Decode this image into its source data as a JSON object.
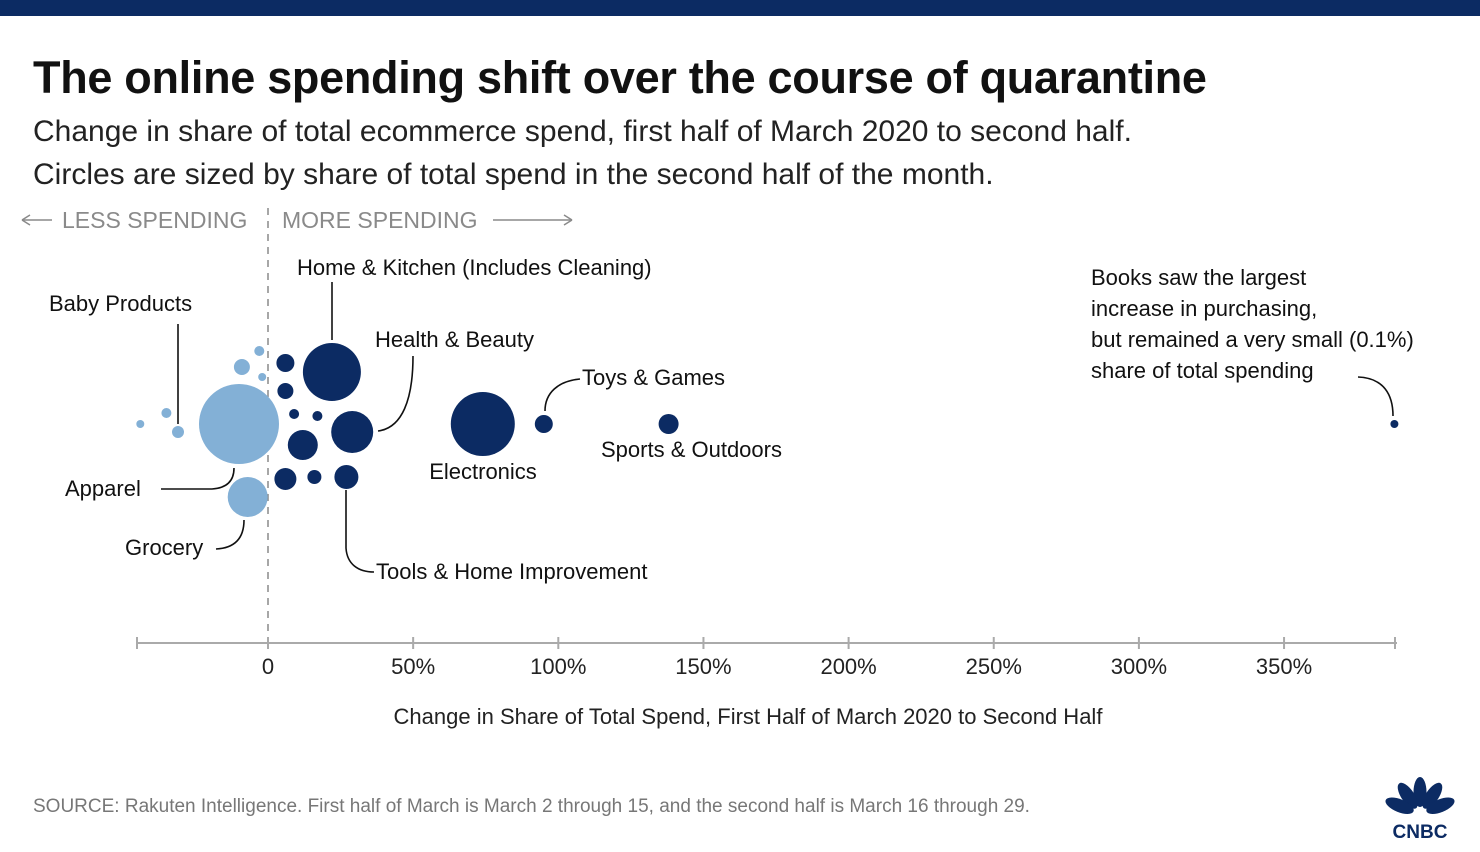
{
  "header": {
    "title": "The online spending shift over the course of quarantine",
    "subtitle_line1": "Change in share of total ecommerce spend, first half of March 2020 to second half.",
    "subtitle_line2": "Circles are sized by share of total spend in the second half of the month."
  },
  "source": "SOURCE: Rakuten Intelligence. First half of March is March 2 through 15, and the second half is March 16 through 29.",
  "logo": {
    "text": "CNBC",
    "icon": "nbc-peacock-icon"
  },
  "colors": {
    "increase": "#0c2b63",
    "decrease": "#83b0d6",
    "top_bar": "#0c2b63",
    "axis": "#aaaaaa",
    "text": "#111111",
    "muted": "#777777"
  },
  "chart_data": {
    "type": "scatter",
    "title": "The online spending shift over the course of quarantine",
    "xlabel": "Change in Share of Total Spend, First Half of March 2020 to Second Half",
    "ylabel": "",
    "xlim": [
      -45,
      390
    ],
    "x_ticks": [
      {
        "value": 0,
        "label": "0"
      },
      {
        "value": 50,
        "label": "50%"
      },
      {
        "value": 100,
        "label": "100%"
      },
      {
        "value": 150,
        "label": "150%"
      },
      {
        "value": 200,
        "label": "200%"
      },
      {
        "value": 250,
        "label": "250%"
      },
      {
        "value": 300,
        "label": "300%"
      },
      {
        "value": 350,
        "label": "350%"
      }
    ],
    "direction_labels": {
      "less": "LESS SPENDING",
      "more": "MORE SPENDING"
    },
    "grid": false,
    "size_encoding": "share of total spend in the second half of the month",
    "points": [
      {
        "name": "Apparel",
        "x": -10,
        "size": 40,
        "group": "decrease",
        "labeled": true
      },
      {
        "name": "Grocery",
        "x": -7,
        "size": 20,
        "group": "decrease",
        "labeled": true
      },
      {
        "name": "Baby Products",
        "x": -31,
        "size": 6,
        "group": "decrease",
        "labeled": true
      },
      {
        "name": "",
        "x": -35,
        "size": 5,
        "group": "decrease",
        "labeled": false
      },
      {
        "name": "",
        "x": -44,
        "size": 4,
        "group": "decrease",
        "labeled": false
      },
      {
        "name": "",
        "x": -9,
        "size": 8,
        "group": "decrease",
        "labeled": false
      },
      {
        "name": "",
        "x": -3,
        "size": 5,
        "group": "decrease",
        "labeled": false
      },
      {
        "name": "",
        "x": -2,
        "size": 4,
        "group": "decrease",
        "labeled": false
      },
      {
        "name": "Home & Kitchen (Includes Cleaning)",
        "x": 22,
        "size": 29,
        "group": "increase",
        "labeled": true
      },
      {
        "name": "Health & Beauty",
        "x": 29,
        "size": 21,
        "group": "increase",
        "labeled": true
      },
      {
        "name": "Electronics",
        "x": 74,
        "size": 32,
        "group": "increase",
        "labeled": true
      },
      {
        "name": "Toys & Games",
        "x": 95,
        "size": 9,
        "group": "increase",
        "labeled": true
      },
      {
        "name": "Sports & Outdoors",
        "x": 138,
        "size": 10,
        "group": "increase",
        "labeled": true
      },
      {
        "name": "Tools & Home Improvement",
        "x": 27,
        "size": 12,
        "group": "increase",
        "labeled": true
      },
      {
        "name": "Books",
        "x": 388,
        "size": 4,
        "group": "increase",
        "labeled": true
      },
      {
        "name": "",
        "x": 6,
        "size": 9,
        "group": "increase",
        "labeled": false
      },
      {
        "name": "",
        "x": 6,
        "size": 8,
        "group": "increase",
        "labeled": false
      },
      {
        "name": "",
        "x": 9,
        "size": 5,
        "group": "increase",
        "labeled": false
      },
      {
        "name": "",
        "x": 17,
        "size": 5,
        "group": "increase",
        "labeled": false
      },
      {
        "name": "",
        "x": 12,
        "size": 15,
        "group": "increase",
        "labeled": false
      },
      {
        "name": "",
        "x": 6,
        "size": 11,
        "group": "increase",
        "labeled": false
      },
      {
        "name": "",
        "x": 16,
        "size": 7,
        "group": "increase",
        "labeled": false
      }
    ],
    "annotations": {
      "baby": "Baby Products",
      "home": "Home & Kitchen (Includes Cleaning)",
      "health": "Health & Beauty",
      "toys": "Toys & Games",
      "sports": "Sports & Outdoors",
      "electronics": "Electronics",
      "apparel": "Apparel",
      "grocery": "Grocery",
      "tools": "Tools & Home Improvement",
      "books_line1": "Books saw the largest",
      "books_line2": "increase in purchasing,",
      "books_line3": "but remained a very small (0.1%)",
      "books_line4": "share of total spending"
    }
  }
}
